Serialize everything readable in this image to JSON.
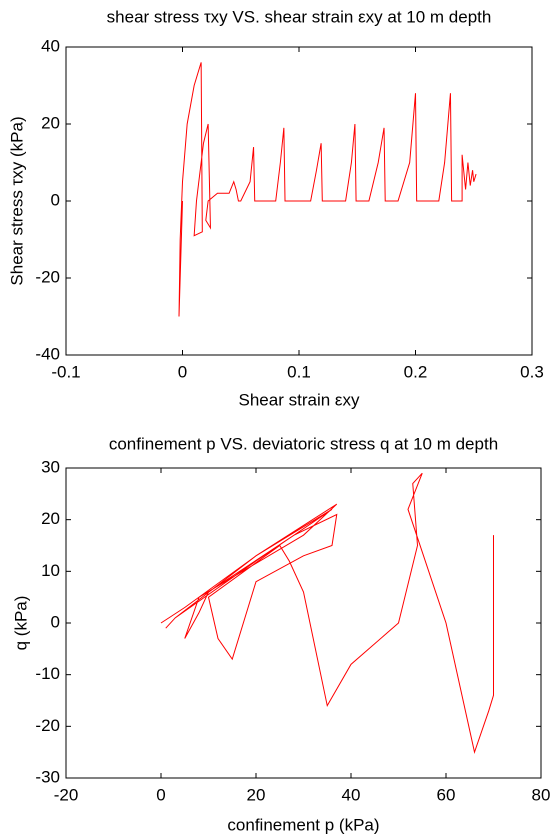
{
  "chart_data": [
    {
      "type": "line",
      "title": "shear stress τxy VS. shear strain εxy at 10 m depth",
      "xlabel": "Shear strain εxy",
      "ylabel": "Shear stress τxy (kPa)",
      "color": "#ff0000",
      "xlim": [
        -0.1,
        0.3
      ],
      "xticks": [
        -0.1,
        0,
        0.1,
        0.2,
        0.3
      ],
      "ylim": [
        -40,
        40
      ],
      "yticks": [
        -40,
        -20,
        0,
        20,
        40
      ],
      "x": [
        0,
        -0.002,
        -0.003,
        -0.002,
        0,
        0.004,
        0.01,
        0.016,
        0.017,
        0.01,
        0.012,
        0.018,
        0.022,
        0.024,
        0.02,
        0.022,
        0.03,
        0.04,
        0.044,
        0.046,
        0.048,
        0.05,
        0.058,
        0.061,
        0.062,
        0.07,
        0.08,
        0.084,
        0.087,
        0.088,
        0.1,
        0.11,
        0.115,
        0.119,
        0.12,
        0.13,
        0.14,
        0.145,
        0.148,
        0.149,
        0.16,
        0.168,
        0.173,
        0.174,
        0.185,
        0.195,
        0.2,
        0.201,
        0.22,
        0.225,
        0.23,
        0.231,
        0.24,
        0.24,
        0.243,
        0.245,
        0.247,
        0.249,
        0.25,
        0.252
      ],
      "values": [
        0,
        -20,
        -30,
        -10,
        5,
        20,
        30,
        36,
        -8,
        -9,
        0,
        15,
        20,
        -7,
        -5,
        0,
        2,
        2,
        5,
        3,
        0,
        0,
        5,
        14,
        0,
        0,
        0,
        10,
        19,
        0,
        0,
        0,
        8,
        15,
        0,
        0,
        0,
        10,
        20,
        0,
        0,
        10,
        19,
        0,
        0,
        10,
        28,
        0,
        0,
        10,
        28,
        0,
        0,
        12,
        3,
        10,
        4,
        8,
        5,
        7
      ]
    },
    {
      "type": "line",
      "title": "confinement p VS. deviatoric stress q at 10 m depth",
      "xlabel": "confinement p (kPa)",
      "ylabel": "q (kPa)",
      "color": "#ff0000",
      "xlim": [
        -20,
        80
      ],
      "xticks": [
        -20,
        0,
        20,
        40,
        60,
        80
      ],
      "ylim": [
        -30,
        30
      ],
      "yticks": [
        -30,
        -20,
        -10,
        0,
        10,
        20,
        30
      ],
      "x": [
        0,
        5,
        20,
        36,
        20,
        3,
        1,
        3,
        20,
        37,
        30,
        8,
        5,
        8,
        10,
        28,
        37,
        36,
        30,
        20,
        15,
        12,
        10,
        25,
        27,
        30,
        35,
        40,
        50,
        54,
        53,
        55,
        52,
        60,
        66,
        69,
        70,
        70
      ],
      "values": [
        0,
        3,
        13,
        22,
        12,
        1,
        -1,
        1,
        13,
        23,
        17,
        5,
        -3,
        2,
        6,
        17,
        21,
        15,
        13,
        8,
        -7,
        -3,
        5,
        15,
        12,
        6,
        -16,
        -8,
        0,
        15,
        27,
        29,
        22,
        0,
        -25,
        -17,
        -14,
        17
      ]
    }
  ]
}
